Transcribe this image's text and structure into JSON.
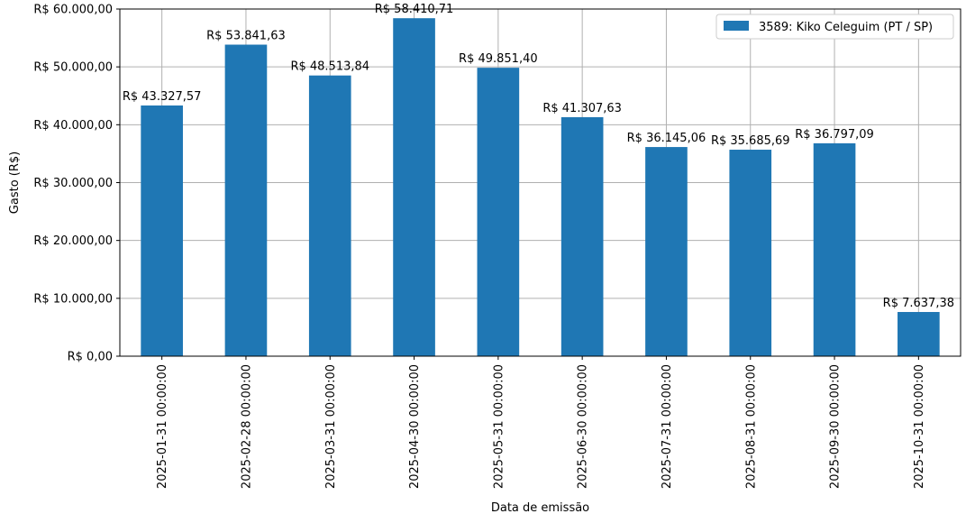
{
  "chart_data": {
    "type": "bar",
    "categories": [
      "2025-01-31 00:00:00",
      "2025-02-28 00:00:00",
      "2025-03-31 00:00:00",
      "2025-04-30 00:00:00",
      "2025-05-31 00:00:00",
      "2025-06-30 00:00:00",
      "2025-07-31 00:00:00",
      "2025-08-31 00:00:00",
      "2025-09-30 00:00:00",
      "2025-10-31 00:00:00"
    ],
    "series": [
      {
        "name": "3589: Kiko Celeguim (PT / SP)",
        "color": "#1f77b4",
        "values": [
          43327.57,
          53841.63,
          48513.84,
          58410.71,
          49851.4,
          41307.63,
          36145.06,
          35685.69,
          36797.09,
          7637.38
        ]
      }
    ],
    "data_labels": [
      "R$ 43.327,57",
      "R$ 53.841,63",
      "R$ 48.513,84",
      "R$ 58.410,71",
      "R$ 49.851,40",
      "R$ 41.307,63",
      "R$ 36.145,06",
      "R$ 35.685,69",
      "R$ 36.797,09",
      "R$ 7.637,38"
    ],
    "yticks": [
      0,
      10000,
      20000,
      30000,
      40000,
      50000,
      60000
    ],
    "ytick_labels": [
      "R$ 0,00",
      "R$ 10.000,00",
      "R$ 20.000,00",
      "R$ 30.000,00",
      "R$ 40.000,00",
      "R$ 50.000,00",
      "R$ 60.000,00"
    ],
    "ylim": [
      0,
      60000
    ],
    "xlabel": "Data de emissão",
    "ylabel": "Gasto (R$)",
    "grid": true,
    "legend_position": "top-right"
  }
}
